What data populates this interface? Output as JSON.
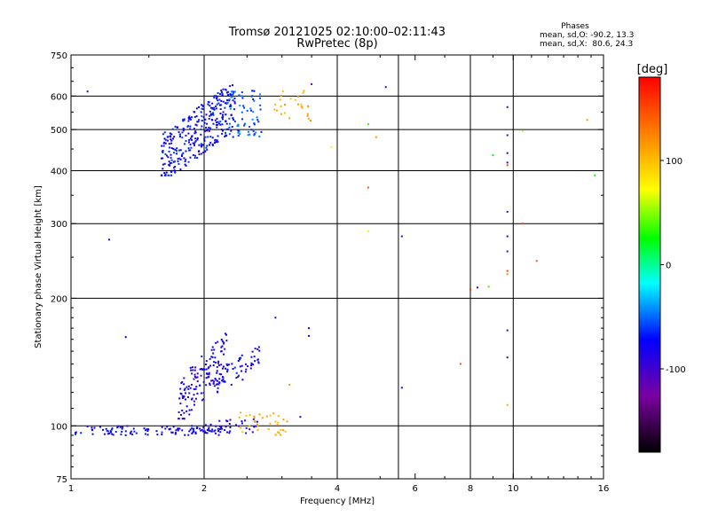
{
  "chart_data": {
    "type": "scatter",
    "title": "Tromsø 20121025 02:10:00–02:11:43",
    "subtitle": "RwPretec (8p)",
    "stats": {
      "heading": "Phases",
      "line1": "mean, sd,O: -90.2, 13.3",
      "line2": "mean, sd,X:  80.6, 24.3"
    },
    "xlabel": "Frequency [MHz]",
    "ylabel": "Stationary phase Virtual Height [km]",
    "x_scale": "log",
    "y_scale": "log",
    "xlim": [
      1,
      16
    ],
    "ylim": [
      75,
      750
    ],
    "xticks": [
      1,
      2,
      4,
      6,
      8,
      10,
      16
    ],
    "xticks_labels": [
      "1",
      "2",
      "4",
      "6",
      "8",
      "10",
      "16"
    ],
    "xgrid": [
      2,
      4,
      5.5,
      8,
      10
    ],
    "yticks": [
      75,
      100,
      200,
      300,
      400,
      500,
      600,
      750
    ],
    "yticks_labels": [
      "75",
      "100",
      "200",
      "300",
      "400",
      "500",
      "600",
      "750"
    ],
    "ygrid": [
      100,
      200,
      300,
      400,
      500,
      600
    ],
    "grid": true,
    "colorbar": {
      "label": "[deg]",
      "range": [
        -180,
        180
      ],
      "ticks": [
        100,
        0,
        -100
      ],
      "tick_labels": [
        "100",
        "0",
        "-100"
      ],
      "colors": [
        "#000000",
        "#7a00a0",
        "#0000ff",
        "#00ffff",
        "#00ff00",
        "#ffff00",
        "#ff8000",
        "#ff0000"
      ]
    },
    "clusters": [
      {
        "name": "low-layer-base",
        "x_range": [
          1.02,
          2.2
        ],
        "y_range": [
          95,
          100
        ],
        "n": 110,
        "phase": -95,
        "shape": "flat"
      },
      {
        "name": "low-layer-right",
        "x_range": [
          2.0,
          2.65
        ],
        "y_range": [
          96,
          104
        ],
        "n": 40,
        "phase": -100,
        "shape": "flat"
      },
      {
        "name": "low-ox-yellow",
        "x_range": [
          2.4,
          3.1
        ],
        "y_range": [
          95,
          108
        ],
        "n": 35,
        "phase": 95,
        "shape": "flat"
      },
      {
        "name": "low-rise-main",
        "x_range": [
          1.75,
          2.25
        ],
        "y_range": [
          104,
          165
        ],
        "n": 140,
        "phase": -100,
        "shape": "rise"
      },
      {
        "name": "low-rise-second",
        "x_range": [
          2.1,
          2.7
        ],
        "y_range": [
          120,
          155
        ],
        "n": 60,
        "phase": -95,
        "shape": "rise"
      },
      {
        "name": "upper-main",
        "x_range": [
          1.6,
          2.35
        ],
        "y_range": [
          390,
          640
        ],
        "n": 330,
        "phase": -90,
        "shape": "rise"
      },
      {
        "name": "upper-right",
        "x_range": [
          2.25,
          2.7
        ],
        "y_range": [
          480,
          620
        ],
        "n": 70,
        "phase": -75,
        "shape": "cloud"
      },
      {
        "name": "upper-yellow",
        "x_range": [
          2.85,
          3.45
        ],
        "y_range": [
          520,
          620
        ],
        "n": 25,
        "phase": 95,
        "shape": "cloud"
      }
    ],
    "points": [
      {
        "x": 1.09,
        "y": 615,
        "phase": -110
      },
      {
        "x": 1.22,
        "y": 275,
        "phase": -110
      },
      {
        "x": 1.33,
        "y": 162,
        "phase": -100
      },
      {
        "x": 2.9,
        "y": 180,
        "phase": -110
      },
      {
        "x": 3.45,
        "y": 170,
        "phase": -100
      },
      {
        "x": 3.45,
        "y": 163,
        "phase": -100
      },
      {
        "x": 3.12,
        "y": 125,
        "phase": 110
      },
      {
        "x": 3.3,
        "y": 105,
        "phase": -100
      },
      {
        "x": 3.5,
        "y": 640,
        "phase": -120
      },
      {
        "x": 3.48,
        "y": 525,
        "phase": 120
      },
      {
        "x": 3.88,
        "y": 455,
        "phase": 60
      },
      {
        "x": 4.7,
        "y": 515,
        "phase": 10
      },
      {
        "x": 4.9,
        "y": 480,
        "phase": 110
      },
      {
        "x": 4.7,
        "y": 365,
        "phase": 140
      },
      {
        "x": 4.7,
        "y": 288,
        "phase": 60
      },
      {
        "x": 5.15,
        "y": 630,
        "phase": -110
      },
      {
        "x": 5.6,
        "y": 280,
        "phase": -110
      },
      {
        "x": 5.6,
        "y": 123,
        "phase": -100
      },
      {
        "x": 7.6,
        "y": 140,
        "phase": 140
      },
      {
        "x": 8.0,
        "y": 210,
        "phase": 160
      },
      {
        "x": 8.3,
        "y": 212,
        "phase": -120
      },
      {
        "x": 8.8,
        "y": 213,
        "phase": 10
      },
      {
        "x": 9.0,
        "y": 435,
        "phase": 0
      },
      {
        "x": 9.7,
        "y": 565,
        "phase": -110
      },
      {
        "x": 9.7,
        "y": 485,
        "phase": -110
      },
      {
        "x": 9.7,
        "y": 440,
        "phase": -110
      },
      {
        "x": 9.7,
        "y": 418,
        "phase": -110
      },
      {
        "x": 9.7,
        "y": 412,
        "phase": 150
      },
      {
        "x": 9.7,
        "y": 320,
        "phase": -110
      },
      {
        "x": 9.7,
        "y": 280,
        "phase": -100
      },
      {
        "x": 9.7,
        "y": 258,
        "phase": -110
      },
      {
        "x": 9.7,
        "y": 232,
        "phase": 150
      },
      {
        "x": 9.7,
        "y": 228,
        "phase": 110
      },
      {
        "x": 9.7,
        "y": 168,
        "phase": -110
      },
      {
        "x": 9.7,
        "y": 145,
        "phase": -110
      },
      {
        "x": 9.7,
        "y": 112,
        "phase": 100
      },
      {
        "x": 10.5,
        "y": 497,
        "phase": 30
      },
      {
        "x": 10.5,
        "y": 300,
        "phase": 150
      },
      {
        "x": 11.3,
        "y": 245,
        "phase": 140
      },
      {
        "x": 14.7,
        "y": 527,
        "phase": 110
      },
      {
        "x": 15.3,
        "y": 390,
        "phase": 0
      }
    ]
  }
}
